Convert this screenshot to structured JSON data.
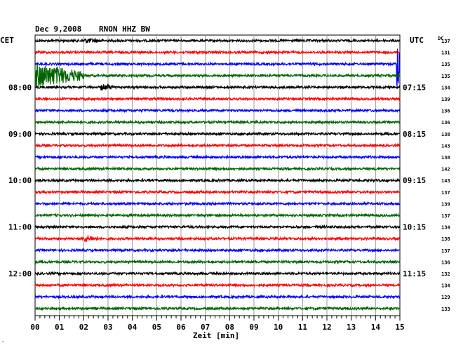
{
  "header": {
    "date": "Dec 9,2008",
    "station": "RNON HHZ BW",
    "left_tz": "CET",
    "right_tz": "UTC",
    "dc_label": "DC"
  },
  "chart_data": {
    "type": "line",
    "title": "Dec 9,2008   RNON HHZ BW",
    "xlabel": "Zeit [min]",
    "xlim": [
      0,
      15
    ],
    "x_ticks": [
      "00",
      "01",
      "02",
      "03",
      "04",
      "05",
      "06",
      "07",
      "08",
      "09",
      "10",
      "11",
      "12",
      "13",
      "14",
      "15"
    ],
    "grid": true,
    "trace_colors": [
      "#000000",
      "#ff0000",
      "#0000ff",
      "#006400"
    ],
    "left_time_labels": [
      {
        "row": 4,
        "text": "08:00"
      },
      {
        "row": 8,
        "text": "09:00"
      },
      {
        "row": 12,
        "text": "10:00"
      },
      {
        "row": 16,
        "text": "11:00"
      },
      {
        "row": 20,
        "text": "12:00"
      }
    ],
    "right_time_labels": [
      {
        "row": 4,
        "text": "07:15"
      },
      {
        "row": 8,
        "text": "08:15"
      },
      {
        "row": 12,
        "text": "09:15"
      },
      {
        "row": 16,
        "text": "10:15"
      },
      {
        "row": 20,
        "text": "11:15"
      }
    ],
    "dc_offsets": [
      137,
      131,
      135,
      135,
      134,
      139,
      136,
      136,
      138,
      143,
      138,
      142,
      143,
      137,
      139,
      137,
      134,
      138,
      137,
      136,
      132,
      134,
      129,
      133
    ],
    "events": [
      {
        "row": 0,
        "start_min": 2.0,
        "duration_min": 1.1,
        "amplitude": 4
      },
      {
        "row": 2,
        "start_min": 14.85,
        "duration_min": 0.25,
        "amplitude": 45
      },
      {
        "row": 3,
        "start_min": 0.0,
        "duration_min": 2.0,
        "amplitude": 18
      },
      {
        "row": 4,
        "start_min": 2.7,
        "duration_min": 0.7,
        "amplitude": 5
      },
      {
        "row": 17,
        "start_min": 2.0,
        "duration_min": 0.6,
        "amplitude": 6
      }
    ]
  }
}
